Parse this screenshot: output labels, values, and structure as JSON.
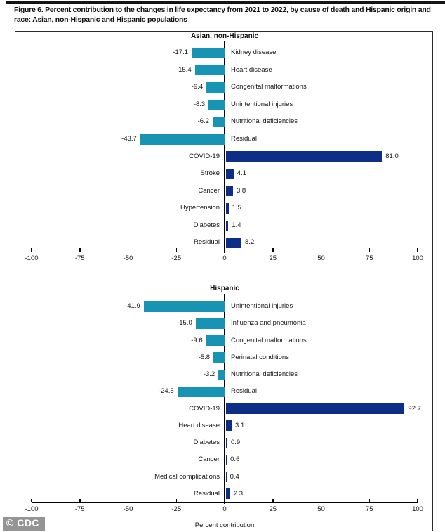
{
  "title": "Figure 6. Percent contribution to the changes in life expectancy from 2021 to 2022, by cause of death and Hispanic origin and race: Asian, non-Hispanic and Hispanic populations",
  "watermark": "© CDC",
  "xlabel": "Percent contribution",
  "colors": {
    "negative_bar": "#1794b4",
    "positive_bar": "#0d2e87"
  },
  "axis": {
    "ticks": [
      -100,
      -75,
      -50,
      -25,
      0,
      25,
      50,
      75,
      100
    ],
    "xlim": [
      -100,
      100
    ]
  },
  "chart_data": [
    {
      "type": "bar",
      "orientation": "horizontal",
      "title": "Asian, non-Hispanic",
      "xlabel": "Percent contribution",
      "xlim": [
        -100,
        100
      ],
      "grid": false,
      "categories": [
        "Kidney disease",
        "Heart disease",
        "Congenital malformations",
        "Unintentional injuries",
        "Nutritional deficiencies",
        "Residual",
        "COVID-19",
        "Stroke",
        "Cancer",
        "Hypertension",
        "Diabetes",
        "Residual"
      ],
      "values": [
        -17.1,
        -15.4,
        -9.4,
        -8.3,
        -6.2,
        -43.7,
        81.0,
        4.1,
        3.8,
        1.5,
        1.4,
        8.2
      ]
    },
    {
      "type": "bar",
      "orientation": "horizontal",
      "title": "Hispanic",
      "xlabel": "Percent contribution",
      "xlim": [
        -100,
        100
      ],
      "grid": false,
      "categories": [
        "Unintentional injuries",
        "Influenza and pneumonia",
        "Congenital malformations",
        "Perinatal conditions",
        "Nutritional deficiencies",
        "Residual",
        "COVID-19",
        "Heart disease",
        "Diabetes",
        "Cancer",
        "Medical complications",
        "Residual"
      ],
      "values": [
        -41.9,
        -15.0,
        -9.6,
        -5.8,
        -3.2,
        -24.5,
        92.7,
        3.1,
        0.9,
        0.6,
        0.4,
        2.3
      ]
    }
  ]
}
